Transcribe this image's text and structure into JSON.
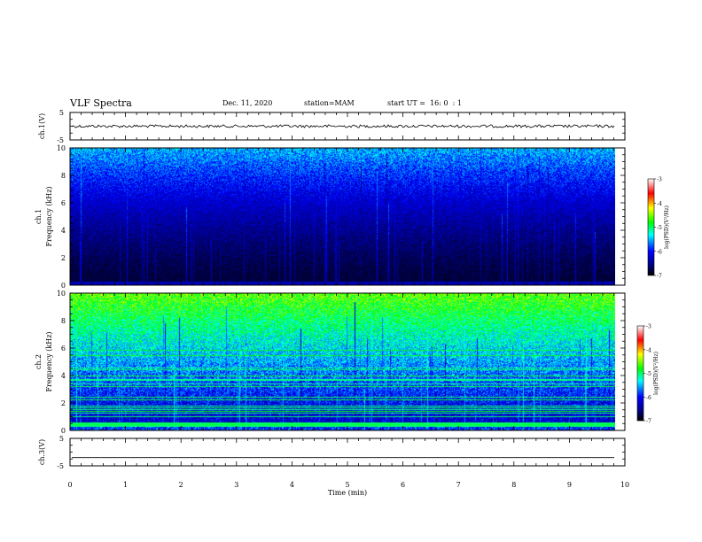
{
  "header": {
    "title": "VLF Spectra",
    "date": "Dec. 11, 2020",
    "station": "station=MAM",
    "start": "start UT =  16: 0  : 1"
  },
  "chart_data": [
    {
      "type": "line",
      "ylabel": "ch.1(V)",
      "ylim": [
        -5,
        5
      ],
      "yticks": [
        "5",
        "-5"
      ],
      "trace_level": 0,
      "xlim": [
        0,
        10
      ]
    },
    {
      "type": "heatmap",
      "ylabel_top": "ch.1",
      "ylabel": "Frequency (kHz)",
      "ylim": [
        0,
        10
      ],
      "yticks": [
        "0",
        "2",
        "4",
        "6",
        "8",
        "10"
      ],
      "xlim": [
        0,
        10
      ],
      "data_end_min": 9.83,
      "colorbar": {
        "label": "log(PSD)(V²/Hz)",
        "range": [
          -7,
          -3
        ],
        "ticks": [
          "-3",
          "-4",
          "-5",
          "-6",
          "-7"
        ],
        "colormap": [
          "#000000",
          "#00008f",
          "#0000ff",
          "#00ffff",
          "#00ff00",
          "#ffff00",
          "#ff0000",
          "#ffffff"
        ]
      }
    },
    {
      "type": "heatmap",
      "ylabel_top": "ch.2",
      "ylabel": "Frequency (kHz)",
      "ylim": [
        0,
        10
      ],
      "yticks": [
        "0",
        "2",
        "4",
        "6",
        "8",
        "10"
      ],
      "xlim": [
        0,
        10
      ],
      "data_end_min": 9.83,
      "colorbar": {
        "label": "log(PSD)(V²/Hz)",
        "range": [
          -7,
          -3
        ],
        "ticks": [
          "-3",
          "-4",
          "-5",
          "-6",
          "-7"
        ],
        "colormap": [
          "#000000",
          "#00008f",
          "#0000ff",
          "#00ffff",
          "#00ff00",
          "#ffff00",
          "#ff0000",
          "#ffffff"
        ]
      }
    },
    {
      "type": "line",
      "ylabel": "ch.3(V)",
      "ylim": [
        -5,
        5
      ],
      "yticks": [
        "5",
        "-5"
      ],
      "trace_level": -2,
      "xlim": [
        0,
        10
      ],
      "xlabel": "Time (min)",
      "xticks": [
        "0",
        "1",
        "2",
        "3",
        "4",
        "5",
        "6",
        "7",
        "8",
        "9",
        "10"
      ]
    }
  ]
}
